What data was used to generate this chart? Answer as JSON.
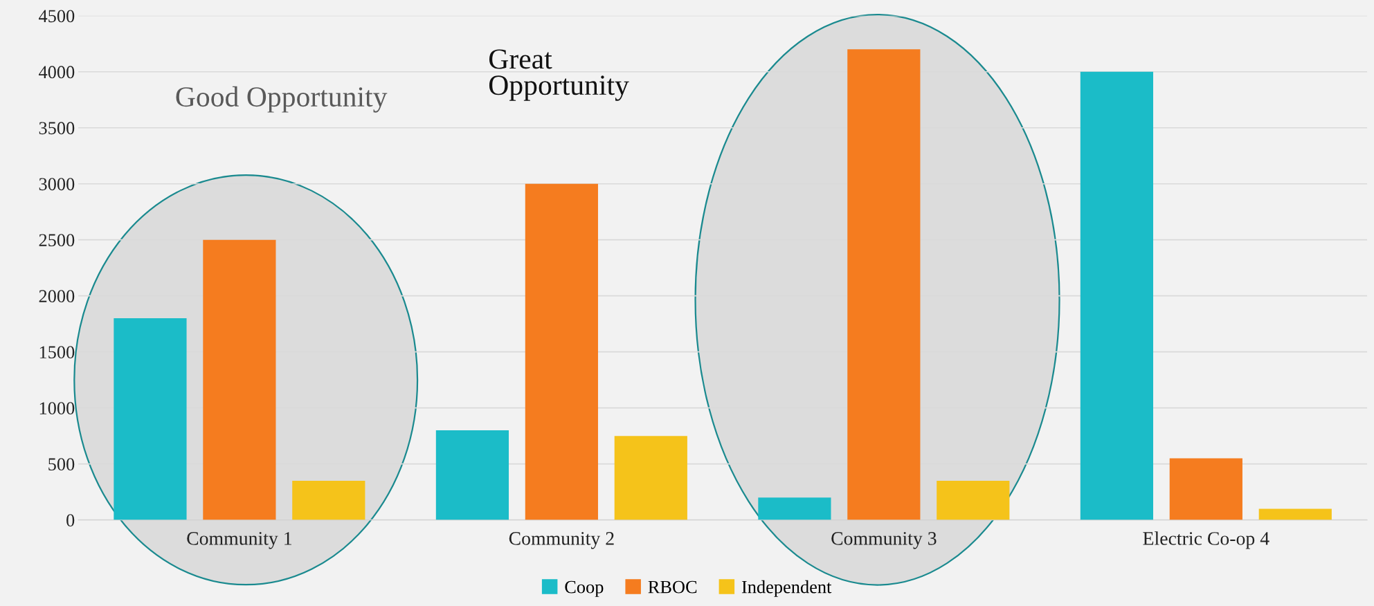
{
  "chart_data": {
    "type": "bar",
    "categories": [
      "Community 1",
      "Community 2",
      "Community 3",
      "Electric Co-op 4"
    ],
    "series": [
      {
        "name": "Coop",
        "color": "#1bbcc8",
        "values": [
          1800,
          800,
          200,
          4000
        ]
      },
      {
        "name": "RBOC",
        "color": "#f57c1f",
        "values": [
          2500,
          3000,
          4200,
          550
        ]
      },
      {
        "name": "Independent",
        "color": "#f5c31a",
        "values": [
          350,
          750,
          350,
          100
        ]
      }
    ],
    "ylim": [
      0,
      4500
    ],
    "yticks": [
      0,
      500,
      1000,
      1500,
      2000,
      2500,
      3000,
      3500,
      4000,
      4500
    ],
    "grid": "y",
    "legend": "bottom",
    "annotations": [
      "Good Opportunity",
      "Great\nOpportunity"
    ]
  }
}
